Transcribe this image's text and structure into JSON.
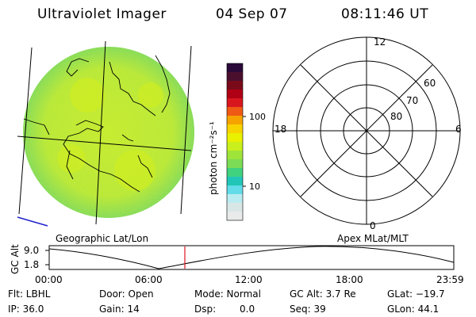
{
  "header": {
    "title": "Ultraviolet Imager",
    "date": "04 Sep 07",
    "time": "08:11:46 UT"
  },
  "colorbar": {
    "unit_label": "photon cm⁻²s⁻¹",
    "ticks": [
      "100",
      "10"
    ],
    "colors_top_to_bottom": [
      "#2b0a3a",
      "#4b0f2e",
      "#7a0a1a",
      "#b00015",
      "#d8161e",
      "#ef5a14",
      "#f6a300",
      "#f7d300",
      "#e9f000",
      "#c9ef1c",
      "#9fe43a",
      "#7cdc55",
      "#41d27f",
      "#22c6b8",
      "#61dce8",
      "#b9ecf0",
      "#d9e6e6",
      "#e9eaea"
    ]
  },
  "polar": {
    "mlt_labels": [
      "12",
      "18",
      "6",
      "0"
    ],
    "lat_labels": [
      "60",
      "70",
      "80"
    ]
  },
  "panel_labels": {
    "left": "Geographic Lat/Lon",
    "right": "Apex MLat/MLT"
  },
  "altitude_plot": {
    "ylabel": "GC Alt",
    "yticks": [
      "9.0",
      "1.8"
    ],
    "xticks": [
      "00:00",
      "06:00",
      "12:00",
      "18:00",
      "23:59"
    ],
    "marker_time": "08:11:46",
    "marker_color": "#e0141e"
  },
  "info": {
    "flt": "Flt: LBHL",
    "ip": "IP: 36.0",
    "door": "Door: Open",
    "gain": "Gain: 14",
    "mode": "Mode: Normal",
    "dsp_label": "Dsp:",
    "dsp_value": "0.0",
    "gc_alt": "GC Alt: 3.7 Re",
    "seq": "Seq: 39",
    "glat": "GLat: −19.7",
    "glon": "GLon:  44.1"
  }
}
